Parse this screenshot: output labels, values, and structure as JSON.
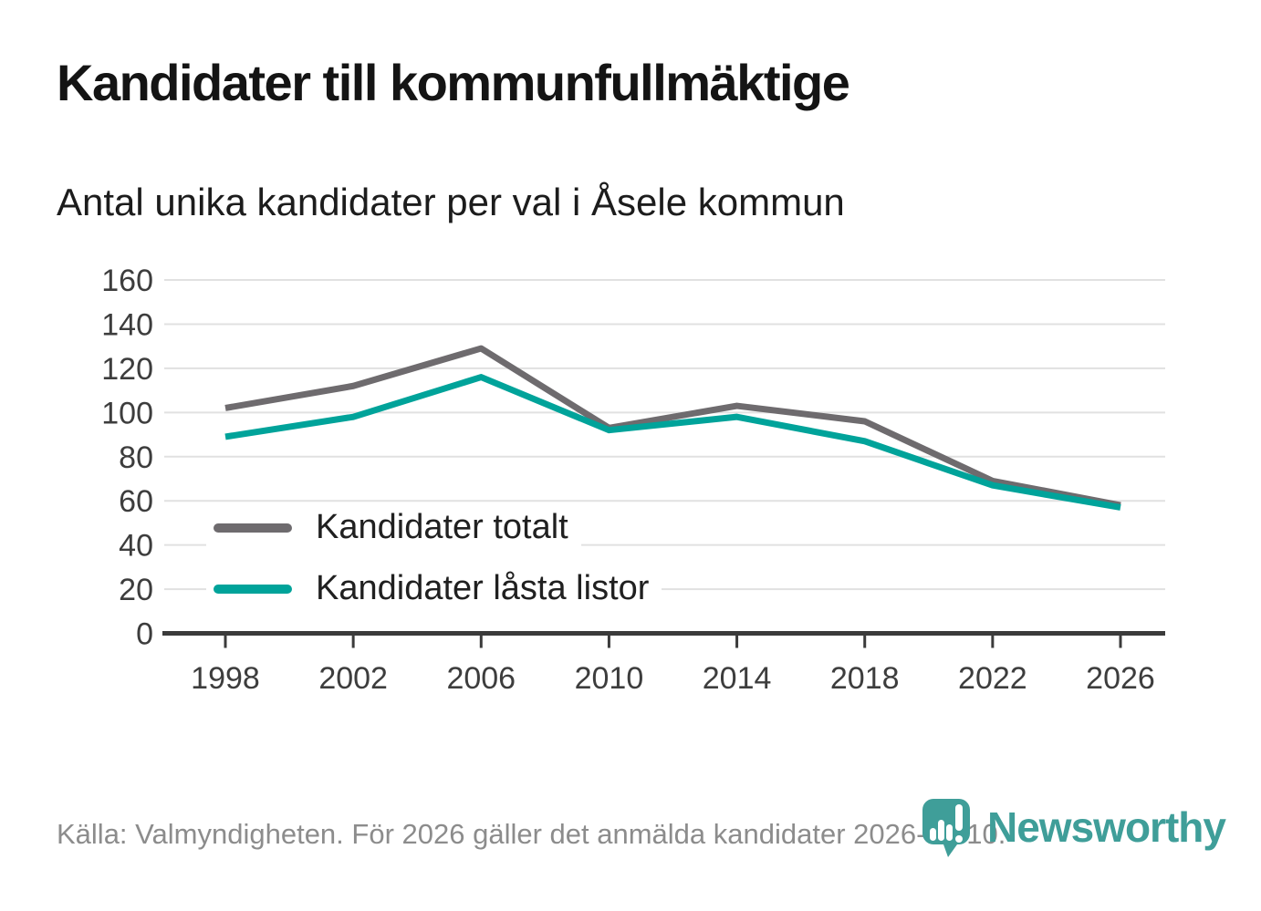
{
  "header": {
    "title": "Kandidater till kommunfullmäktige",
    "subtitle": "Antal unika kandidater per val i Åsele kommun"
  },
  "chart_data": {
    "type": "line",
    "categories": [
      "1998",
      "2002",
      "2006",
      "2010",
      "2014",
      "2018",
      "2022",
      "2026"
    ],
    "series": [
      {
        "name": "Kandidater totalt",
        "color": "#6e6b6e",
        "values": [
          102,
          112,
          129,
          93,
          103,
          96,
          69,
          58
        ]
      },
      {
        "name": "Kandidater låsta listor",
        "color": "#00a39a",
        "values": [
          89,
          98,
          116,
          92,
          98,
          87,
          67,
          57
        ]
      }
    ],
    "ylim": [
      0,
      160
    ],
    "yticks": [
      0,
      20,
      40,
      60,
      80,
      100,
      120,
      140,
      160
    ],
    "grid": true,
    "legend_position": "inside-left",
    "axis_color": "#3b3b3b",
    "grid_color": "#e1e1e1",
    "tick_label_color": "#3d3d3d"
  },
  "footer": {
    "source_text": "Källa: Valmyndigheten. För 2026 gäller det anmälda kandidater 2026-04-10.",
    "brand": "Newsworthy",
    "brand_color": "#3f9e99"
  }
}
